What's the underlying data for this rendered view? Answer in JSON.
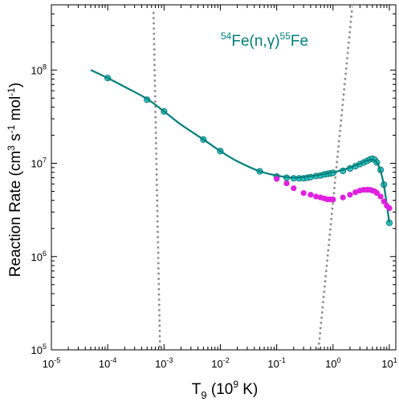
{
  "chart_data": {
    "type": "line",
    "annotation": {
      "mass_a": "54",
      "reaction": "Fe(n,",
      "gamma": "γ",
      "close": ")",
      "mass_b": "55",
      "product": "Fe",
      "color": "#007f7a"
    },
    "xlabel": {
      "base": "T",
      "sub": "9",
      "rest": " (10",
      "sup": "9",
      "unit": " K)"
    },
    "ylabel": {
      "pre": "Reaction Rate (cm",
      "sup1": "3",
      "mid": " s",
      "sup2": "-1",
      "mid2": " mol",
      "sup3": "-1",
      "post": ")"
    },
    "xscale": "log",
    "yscale": "log",
    "xlim": [
      1e-05,
      13
    ],
    "ylim": [
      100000,
      500000000
    ],
    "x_ticks": [
      {
        "base": "10",
        "exp": "-5",
        "value": 1e-05
      },
      {
        "base": "10",
        "exp": "-4",
        "value": 0.0001
      },
      {
        "base": "10",
        "exp": "-3",
        "value": 0.001
      },
      {
        "base": "10",
        "exp": "-2",
        "value": 0.01
      },
      {
        "base": "10",
        "exp": "-1",
        "value": 0.1
      },
      {
        "base": "10",
        "exp": "0",
        "value": 1
      },
      {
        "base": "10",
        "exp": "1",
        "value": 10
      }
    ],
    "y_ticks": [
      {
        "base": "10",
        "exp": "5",
        "value": 100000
      },
      {
        "base": "10",
        "exp": "6",
        "value": 1000000
      },
      {
        "base": "10",
        "exp": "7",
        "value": 10000000
      },
      {
        "base": "10",
        "exp": "8",
        "value": 100000000
      }
    ],
    "grid": false,
    "series": [
      {
        "style": "line",
        "color": "#007f7a",
        "x": [
          5e-05,
          0.0001,
          0.0002,
          0.0005,
          0.001,
          0.002,
          0.005,
          0.01,
          0.02,
          0.05,
          0.1,
          0.15,
          0.2,
          0.3,
          0.5,
          0.7,
          1.0,
          1.5,
          2.0,
          3.0,
          4.0,
          5.0,
          6.0,
          7.0,
          8.0,
          9.0,
          10.0
        ],
        "y": [
          100000000,
          82000000,
          66000000,
          49000000,
          36000000,
          26000000,
          18000000,
          13500000,
          10500000,
          8200000,
          7400000,
          7100000,
          7000000,
          7100000,
          7400000,
          7700000,
          8000000,
          8500000,
          9000000,
          9900000,
          10700000,
          11000000,
          10200000,
          8200000,
          5800000,
          3600000,
          2300000
        ]
      },
      {
        "style": "markers",
        "color": "#2ec4c4",
        "x": [
          0.0001,
          0.0005,
          0.001,
          0.005,
          0.01,
          0.05,
          0.1,
          0.15,
          0.2,
          0.25,
          0.3,
          0.35,
          0.4,
          0.5,
          0.6,
          0.7,
          0.8,
          0.9,
          1.0,
          1.5,
          2.0,
          2.5,
          3.0,
          3.5,
          4.0,
          4.5,
          5.0,
          5.5,
          6.0,
          7.0,
          8.0,
          10.0
        ],
        "y": [
          82000000,
          48000000,
          36000000,
          18000000,
          13500000,
          8200000,
          7200000,
          7000000,
          6900000,
          6900000,
          6900000,
          7000000,
          7100000,
          7300000,
          7400000,
          7600000,
          7700000,
          7800000,
          7900000,
          8300000,
          8800000,
          9300000,
          9800000,
          10200000,
          10600000,
          11000000,
          11200000,
          10900000,
          10200000,
          8500000,
          5900000,
          2300000
        ]
      },
      {
        "style": "markers",
        "color": "#e020e0",
        "x": [
          0.1,
          0.15,
          0.2,
          0.3,
          0.4,
          0.5,
          0.6,
          0.7,
          0.8,
          0.9,
          1.0,
          1.5,
          2.0,
          2.5,
          3.0,
          3.5,
          4.0,
          4.5,
          5.0,
          5.5,
          6.0,
          7.0,
          8.0,
          9.0,
          10.0
        ],
        "y": [
          6800000,
          6100000,
          5400000,
          4800000,
          4600000,
          4400000,
          4300000,
          4200000,
          4100000,
          4100000,
          4100000,
          4300000,
          4600000,
          4900000,
          5100000,
          5200000,
          5200000,
          5200000,
          5100000,
          5000000,
          4800000,
          4400000,
          3900000,
          3500000,
          3300000
        ]
      },
      {
        "style": "dotted",
        "color": "#888888",
        "x": [
          0.00065,
          0.00085
        ],
        "y": [
          420000000,
          100000
        ]
      },
      {
        "style": "dotted",
        "color": "#888888",
        "x": [
          0.55,
          2.2
        ],
        "y": [
          100000,
          480000000
        ]
      }
    ]
  }
}
